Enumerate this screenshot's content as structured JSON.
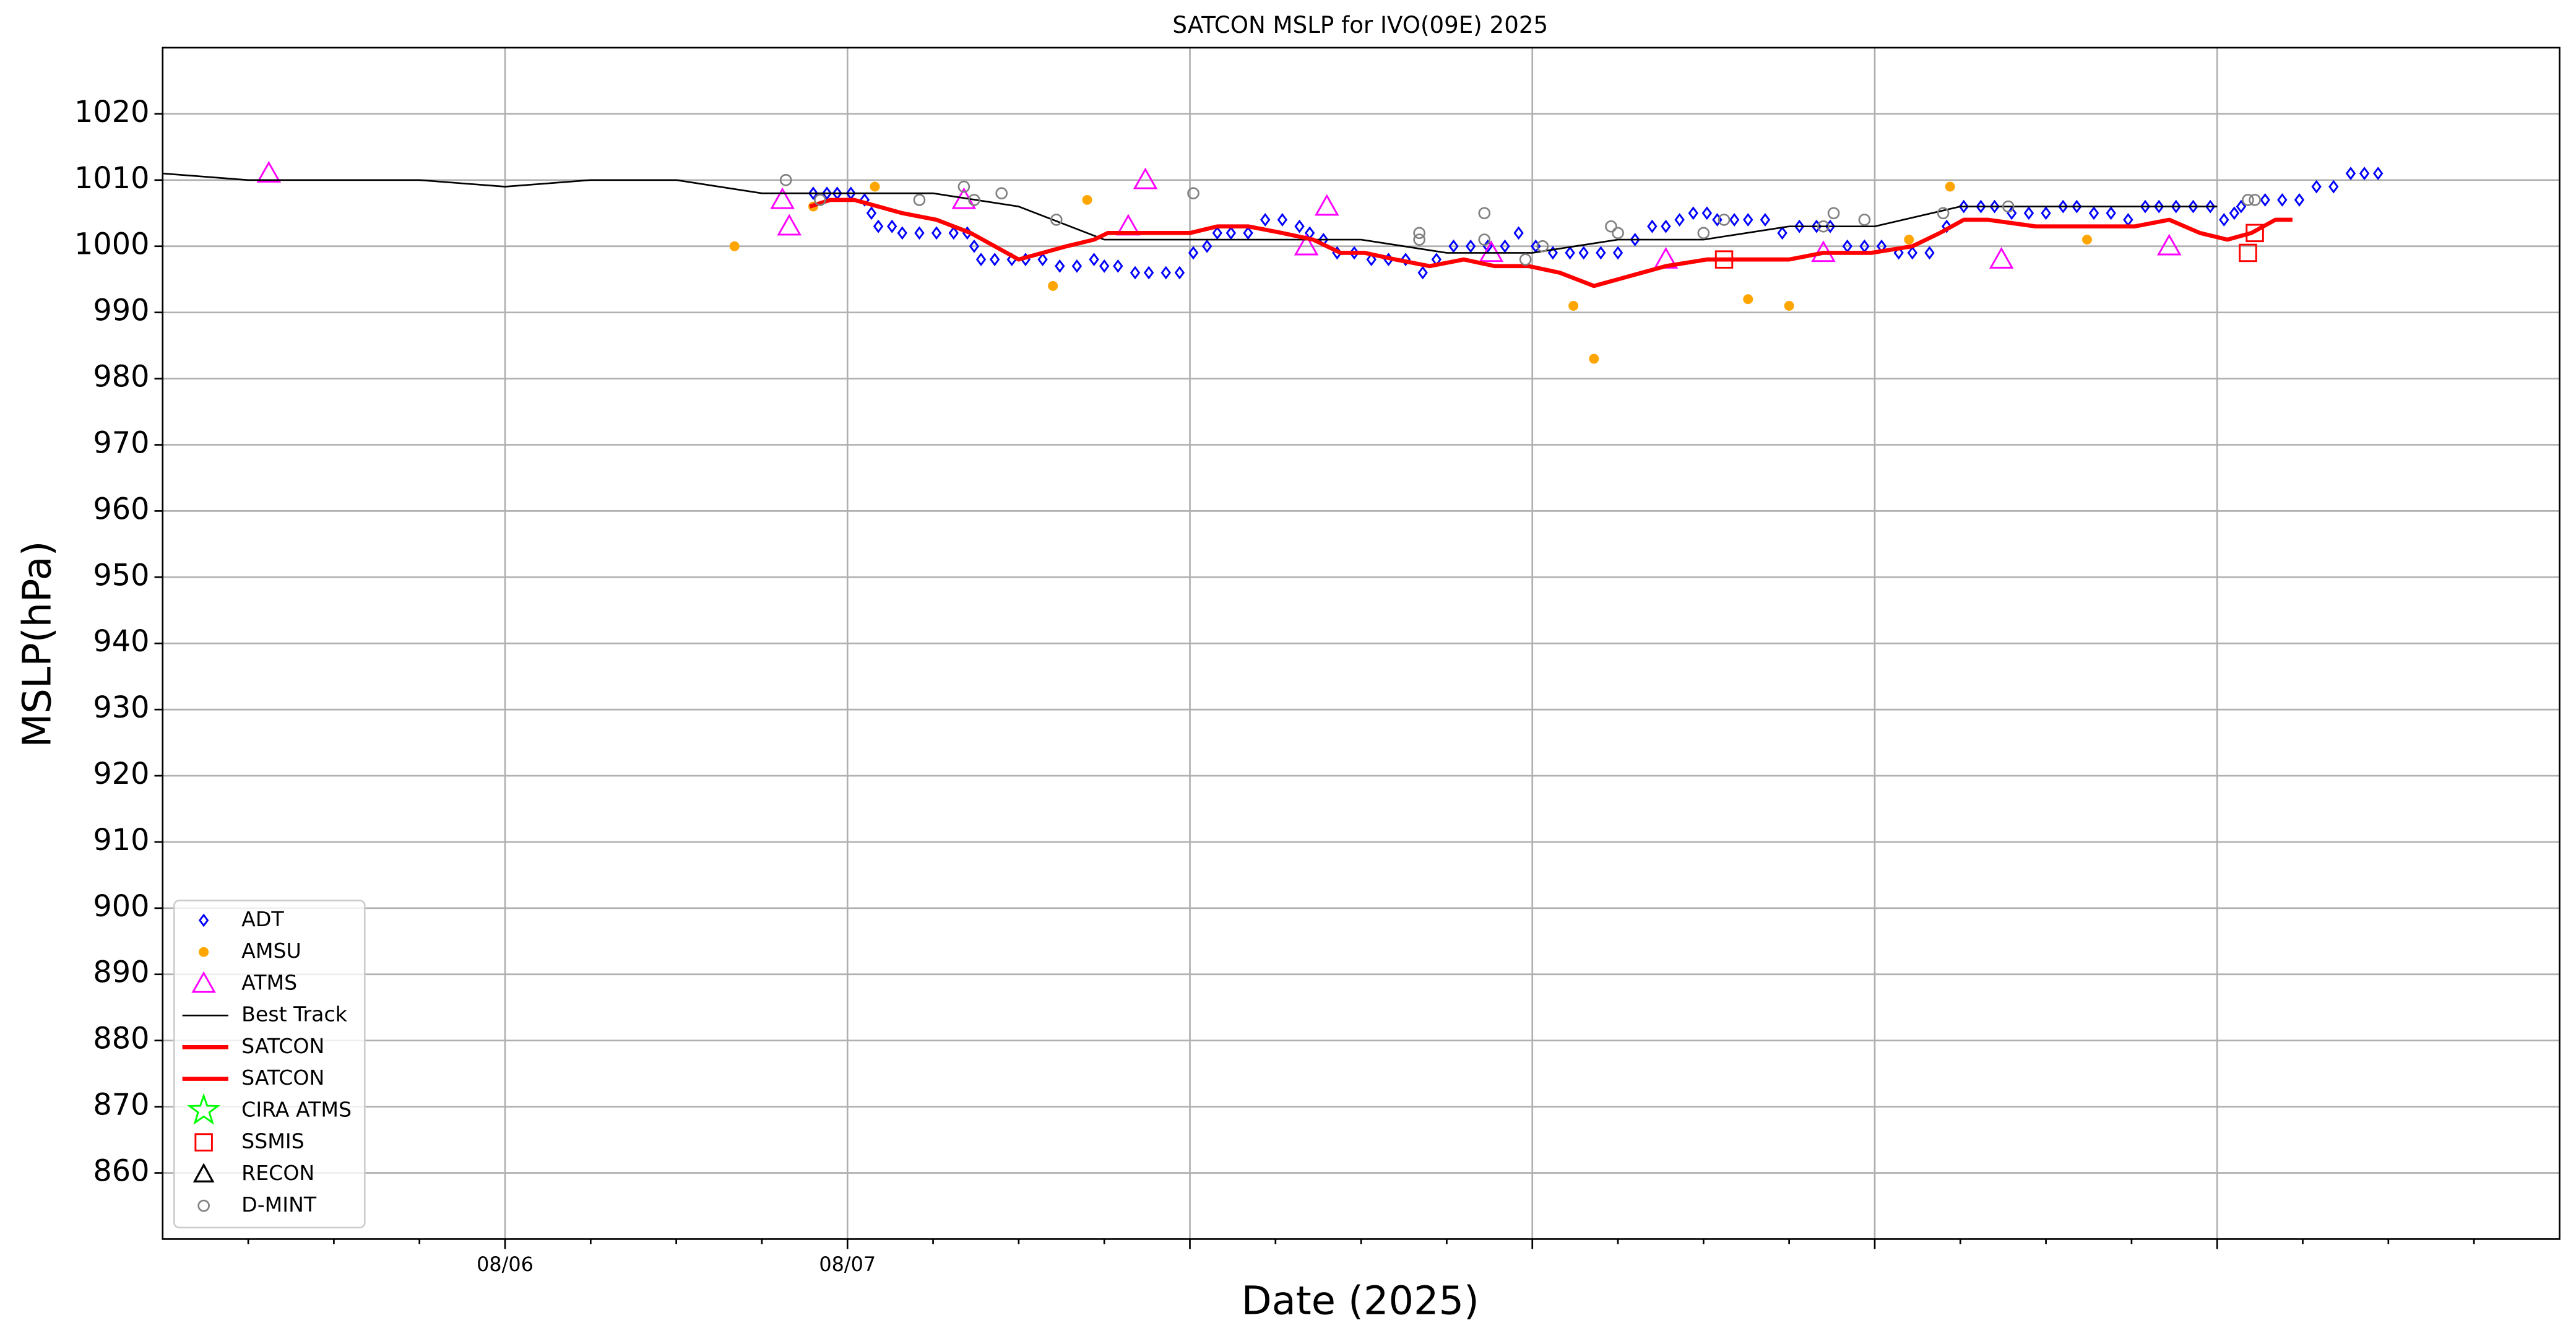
{
  "chart_data": {
    "type": "scatter",
    "title": "SATCON MSLP for IVO(09E) 2025",
    "x_label": "Date (2025)",
    "y_label": "MSLP(hPa)",
    "xlim": [
      5,
      12
    ],
    "xticks": [
      {
        "value": 6,
        "label": "08/06"
      },
      {
        "value": 7,
        "label": "08/07"
      },
      {
        "value": 8,
        "label": null
      },
      {
        "value": 9,
        "label": null
      },
      {
        "value": 10,
        "label": null
      },
      {
        "value": 11,
        "label": null
      }
    ],
    "xminorticks": [
      5.25,
      5.5,
      5.75,
      6.25,
      6.5,
      6.75,
      7.25,
      7.5,
      7.75,
      8.25,
      8.5,
      8.75,
      9.25,
      9.5,
      9.75,
      10.25,
      10.5,
      10.75,
      11.25,
      11.5,
      11.75
    ],
    "ylim": [
      850,
      1030
    ],
    "yticks": [
      860,
      870,
      880,
      890,
      900,
      910,
      920,
      930,
      940,
      950,
      960,
      970,
      980,
      990,
      1000,
      1010,
      1020
    ],
    "grid": true,
    "legend": "lower left",
    "series": [
      {
        "name": "ADT",
        "color": "#0000ff",
        "marker": "diamond",
        "x": [
          6.9,
          6.94,
          6.97,
          7.01,
          7.05,
          7.07,
          7.09,
          7.13,
          7.16,
          7.21,
          7.26,
          7.31,
          7.35,
          7.37,
          7.39,
          7.43,
          7.48,
          7.52,
          7.57,
          7.62,
          7.67,
          7.72,
          7.75,
          7.79,
          7.84,
          7.88,
          7.93,
          7.97,
          8.01,
          8.05,
          8.08,
          8.12,
          8.17,
          8.22,
          8.27,
          8.32,
          8.35,
          8.39,
          8.43,
          8.48,
          8.53,
          8.58,
          8.63,
          8.68,
          8.72,
          8.77,
          8.82,
          8.87,
          8.92,
          8.96,
          9.01,
          9.06,
          9.11,
          9.15,
          9.2,
          9.25,
          9.3,
          9.35,
          9.39,
          9.43,
          9.47,
          9.51,
          9.54,
          9.59,
          9.63,
          9.68,
          9.73,
          9.78,
          9.83,
          9.87,
          9.92,
          9.97,
          10.02,
          10.07,
          10.11,
          10.16,
          10.21,
          10.26,
          10.31,
          10.35,
          10.4,
          10.45,
          10.5,
          10.55,
          10.59,
          10.64,
          10.69,
          10.74,
          10.79,
          10.83,
          10.88,
          10.93,
          10.98,
          11.02,
          11.05,
          11.07,
          11.14,
          11.19,
          11.24,
          11.29,
          11.34,
          11.39,
          11.43,
          11.47
        ],
        "values": [
          1008,
          1008,
          1008,
          1008,
          1007,
          1005,
          1003,
          1003,
          1002,
          1002,
          1002,
          1002,
          1002,
          1000,
          998,
          998,
          998,
          998,
          998,
          997,
          997,
          998,
          997,
          997,
          996,
          996,
          996,
          996,
          999,
          1000,
          1002,
          1002,
          1002,
          1004,
          1004,
          1003,
          1002,
          1001,
          999,
          999,
          998,
          998,
          998,
          996,
          998,
          1000,
          1000,
          1000,
          1000,
          1002,
          1000,
          999,
          999,
          999,
          999,
          999,
          1001,
          1003,
          1003,
          1004,
          1005,
          1005,
          1004,
          1004,
          1004,
          1004,
          1002,
          1003,
          1003,
          1003,
          1000,
          1000,
          1000,
          999,
          999,
          999,
          1003,
          1006,
          1006,
          1006,
          1005,
          1005,
          1005,
          1006,
          1006,
          1005,
          1005,
          1004,
          1006,
          1006,
          1006,
          1006,
          1006,
          1004,
          1005,
          1006,
          1007,
          1007,
          1007,
          1009,
          1009,
          1011,
          1011,
          1011
        ]
      },
      {
        "name": "AMSU",
        "color": "#ffa500",
        "marker": "dot",
        "x": [
          6.67,
          6.9,
          7.08,
          7.6,
          7.7,
          9.12,
          9.18,
          9.63,
          9.75,
          10.1,
          10.22,
          10.62
        ],
        "values": [
          1000,
          1006,
          1009,
          994,
          1007,
          991,
          983,
          992,
          991,
          1001,
          1009,
          1001
        ]
      },
      {
        "name": "ATMS",
        "color": "#ff00ff",
        "marker": "triangle",
        "x": [
          5.31,
          6.81,
          6.83,
          7.34,
          7.82,
          7.87,
          8.34,
          8.4,
          8.88,
          9.39,
          9.85,
          10.37,
          10.86
        ],
        "values": [
          1011,
          1007,
          1003,
          1007,
          1003,
          1010,
          1000,
          1006,
          999,
          998,
          999,
          998,
          1000
        ]
      },
      {
        "name": "Best Track",
        "color": "#000000",
        "marker": "line",
        "linewidth": 1,
        "x": [
          5,
          5.25,
          5.5,
          5.75,
          6,
          6.25,
          6.5,
          6.75,
          7,
          7.25,
          7.5,
          7.75,
          8,
          8.25,
          8.5,
          8.75,
          9,
          9.25,
          9.5,
          9.75,
          10,
          10.25,
          10.5,
          10.75,
          11
        ],
        "values": [
          1011,
          1010,
          1010,
          1010,
          1009,
          1010,
          1010,
          1008,
          1008,
          1008,
          1006,
          1001,
          1001,
          1001,
          1001,
          999,
          999,
          1001,
          1001,
          1003,
          1003,
          1006,
          1006,
          1006,
          1006
        ]
      },
      {
        "name": "SATCON",
        "color": "#ff0000",
        "marker": "line",
        "linewidth": 2.5,
        "x": [
          6.89,
          6.95,
          7.02,
          7.09,
          7.16,
          7.26,
          7.36,
          7.43,
          7.5,
          7.57,
          7.64,
          7.72,
          7.76,
          7.84,
          7.93,
          8.0,
          8.08,
          8.17,
          8.27,
          8.36,
          8.44,
          8.51,
          8.6,
          8.7,
          8.8,
          8.89,
          8.99,
          9.08,
          9.18,
          9.25,
          9.32,
          9.39,
          9.51,
          9.66,
          9.75,
          9.85,
          9.99,
          10.11,
          10.19,
          10.26,
          10.33,
          10.47,
          10.62,
          10.76,
          10.86,
          10.95,
          11.03,
          11.1,
          11.17,
          11.22
        ],
        "values": [
          1006,
          1007,
          1007,
          1006,
          1005,
          1004,
          1002,
          1000,
          998,
          999,
          1000,
          1001,
          1002,
          1002,
          1002,
          1002,
          1003,
          1003,
          1002,
          1001,
          999,
          999,
          998,
          997,
          998,
          997,
          997,
          996,
          994,
          995,
          996,
          997,
          998,
          998,
          998,
          999,
          999,
          1000,
          1002,
          1004,
          1004,
          1003,
          1003,
          1003,
          1004,
          1002,
          1001,
          1002,
          1004,
          1004
        ]
      },
      {
        "name": "SATCON",
        "color": "#ff0000",
        "marker": "line",
        "linewidth": 2.5,
        "x": [],
        "values": []
      },
      {
        "name": "CIRA ATMS",
        "color": "#00ff00",
        "marker": "star",
        "x": [],
        "values": []
      },
      {
        "name": "SSMIS",
        "color": "#ff0000",
        "marker": "square",
        "x": [
          9.56,
          11.09,
          11.11
        ],
        "values": [
          998,
          999,
          1002
        ]
      },
      {
        "name": "RECON",
        "color": "#000000",
        "marker": "triangle-small",
        "x": [],
        "values": []
      },
      {
        "name": "D-MINT",
        "color": "#808080",
        "marker": "circle",
        "x": [
          6.82,
          6.92,
          7.21,
          7.34,
          7.37,
          7.45,
          7.61,
          8.01,
          8.67,
          8.67,
          8.86,
          8.86,
          8.98,
          9.03,
          9.23,
          9.25,
          9.5,
          9.56,
          9.88,
          9.85,
          9.97,
          10.2,
          10.39,
          11.09,
          11.11
        ],
        "values": [
          1010,
          1007,
          1007,
          1009,
          1007,
          1008,
          1004,
          1008,
          1001,
          1002,
          1005,
          1001,
          998,
          1000,
          1003,
          1002,
          1002,
          1004,
          1005,
          1003,
          1004,
          1005,
          1006,
          1007,
          1007
        ]
      }
    ]
  }
}
